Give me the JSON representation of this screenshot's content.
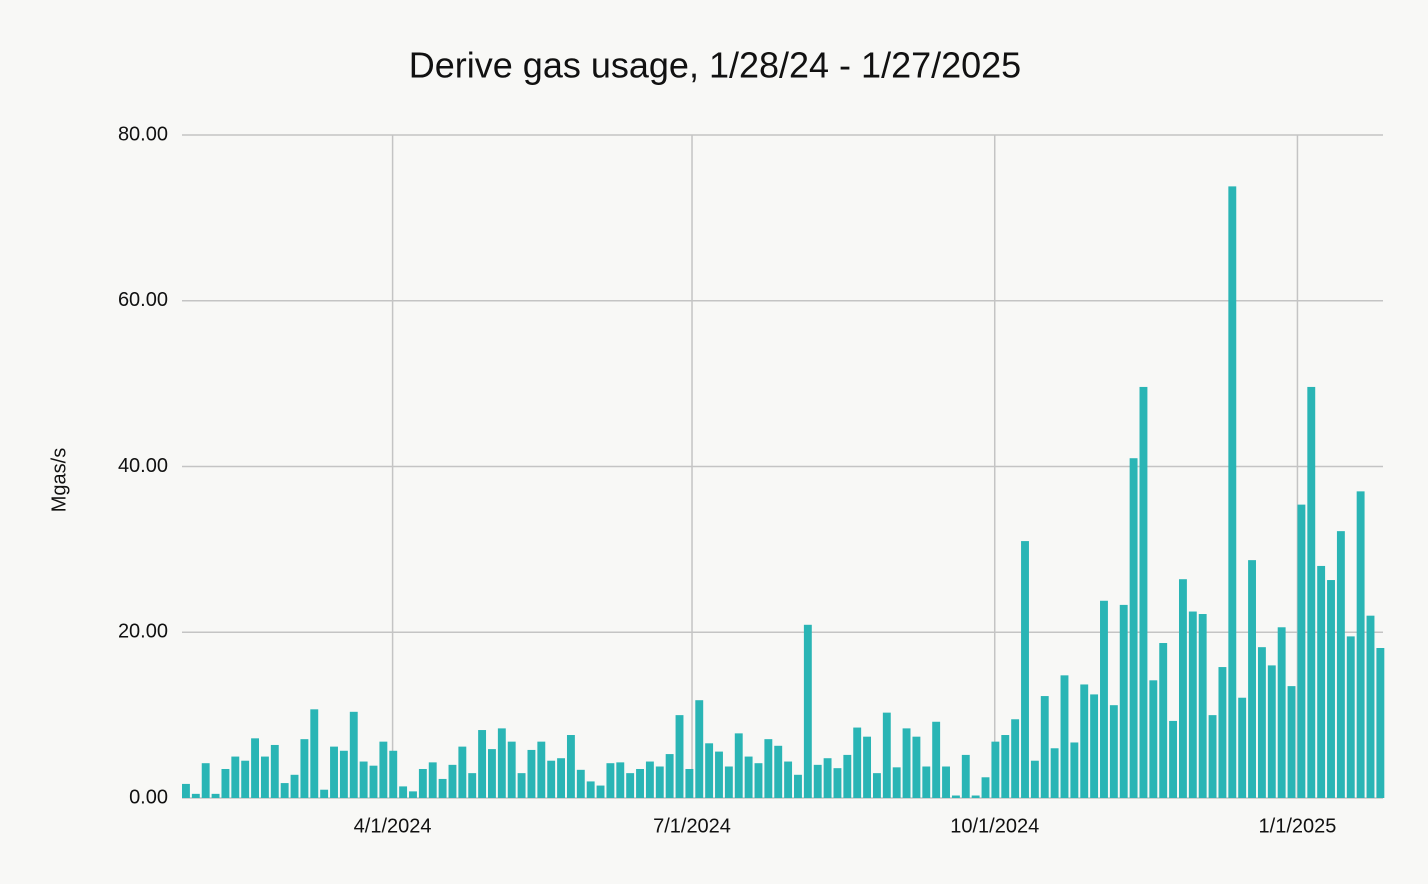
{
  "chart_data": {
    "type": "bar",
    "title": "Derive gas usage, 1/28/24 - 1/27/2025",
    "y_label": "Mgas/s",
    "color": "#2ab5b5",
    "grid": true,
    "x": [
      "2024-01-28",
      "2024-01-31",
      "2024-02-03",
      "2024-02-06",
      "2024-02-09",
      "2024-02-12",
      "2024-02-15",
      "2024-02-18",
      "2024-02-21",
      "2024-02-24",
      "2024-02-27",
      "2024-03-01",
      "2024-03-04",
      "2024-03-07",
      "2024-03-10",
      "2024-03-13",
      "2024-03-16",
      "2024-03-19",
      "2024-03-22",
      "2024-03-25",
      "2024-03-28",
      "2024-03-31",
      "2024-04-03",
      "2024-04-06",
      "2024-04-09",
      "2024-04-12",
      "2024-04-15",
      "2024-04-18",
      "2024-04-21",
      "2024-04-24",
      "2024-04-27",
      "2024-04-30",
      "2024-05-03",
      "2024-05-06",
      "2024-05-09",
      "2024-05-12",
      "2024-05-15",
      "2024-05-18",
      "2024-05-21",
      "2024-05-24",
      "2024-05-27",
      "2024-05-30",
      "2024-06-02",
      "2024-06-05",
      "2024-06-08",
      "2024-06-11",
      "2024-06-14",
      "2024-06-17",
      "2024-06-20",
      "2024-06-23",
      "2024-06-26",
      "2024-06-29",
      "2024-07-02",
      "2024-07-05",
      "2024-07-08",
      "2024-07-11",
      "2024-07-14",
      "2024-07-17",
      "2024-07-20",
      "2024-07-23",
      "2024-07-26",
      "2024-07-29",
      "2024-08-01",
      "2024-08-04",
      "2024-08-07",
      "2024-08-10",
      "2024-08-13",
      "2024-08-16",
      "2024-08-19",
      "2024-08-22",
      "2024-08-25",
      "2024-08-28",
      "2024-08-31",
      "2024-09-03",
      "2024-09-06",
      "2024-09-09",
      "2024-09-12",
      "2024-09-15",
      "2024-09-18",
      "2024-09-21",
      "2024-09-24",
      "2024-09-27",
      "2024-09-30",
      "2024-10-03",
      "2024-10-06",
      "2024-10-09",
      "2024-10-12",
      "2024-10-15",
      "2024-10-18",
      "2024-10-21",
      "2024-10-24",
      "2024-10-27",
      "2024-10-30",
      "2024-11-02",
      "2024-11-05",
      "2024-11-08",
      "2024-11-11",
      "2024-11-14",
      "2024-11-17",
      "2024-11-20",
      "2024-11-23",
      "2024-11-26",
      "2024-11-29",
      "2024-12-02",
      "2024-12-05",
      "2024-12-08",
      "2024-12-11",
      "2024-12-14",
      "2024-12-17",
      "2024-12-20",
      "2024-12-23",
      "2024-12-26",
      "2024-12-29",
      "2025-01-01",
      "2025-01-04",
      "2025-01-07",
      "2025-01-10",
      "2025-01-13",
      "2025-01-16",
      "2025-01-19",
      "2025-01-22",
      "2025-01-25"
    ],
    "values": [
      1.7,
      0.5,
      4.2,
      0.5,
      3.5,
      5.0,
      4.5,
      7.2,
      5.0,
      6.4,
      1.8,
      2.8,
      7.1,
      10.7,
      1.0,
      6.2,
      5.7,
      10.4,
      4.4,
      3.9,
      6.8,
      5.7,
      1.4,
      0.8,
      3.5,
      4.3,
      2.3,
      4.0,
      6.2,
      3.0,
      8.2,
      5.9,
      8.4,
      6.8,
      3.0,
      5.8,
      6.8,
      4.5,
      4.8,
      7.6,
      3.4,
      2.0,
      1.5,
      4.2,
      4.3,
      3.0,
      3.5,
      4.4,
      3.8,
      5.3,
      10.0,
      3.5,
      11.8,
      6.6,
      5.6,
      3.8,
      7.8,
      5.0,
      4.2,
      7.1,
      6.3,
      4.4,
      2.8,
      20.9,
      4.0,
      4.8,
      3.6,
      5.2,
      8.5,
      7.4,
      3.0,
      10.3,
      3.7,
      8.4,
      7.4,
      3.8,
      9.2,
      3.8,
      0.3,
      5.2,
      0.3,
      2.5,
      6.8,
      7.6,
      9.5,
      31.0,
      4.5,
      12.3,
      6.0,
      14.8,
      6.7,
      13.7,
      12.5,
      23.8,
      11.2,
      23.3,
      41.0,
      49.6,
      14.2,
      18.7,
      9.3,
      26.4,
      22.5,
      22.2,
      10.0,
      15.8,
      73.8,
      12.1,
      28.7,
      18.2,
      16.0,
      20.6,
      13.5,
      35.4,
      49.6,
      28.0,
      26.3,
      32.2,
      19.5,
      37.0,
      22.0,
      18.1
    ],
    "xlim": [
      "2024-01-28",
      "2025-01-27"
    ],
    "xticks": [
      {
        "value": "2024-04-01",
        "label": "4/1/2024"
      },
      {
        "value": "2024-07-01",
        "label": "7/1/2024"
      },
      {
        "value": "2024-10-01",
        "label": "10/1/2024"
      },
      {
        "value": "2025-01-01",
        "label": "1/1/2025"
      }
    ],
    "ylim": [
      0,
      80
    ],
    "yticks": [
      {
        "value": 0,
        "label": "0.00"
      },
      {
        "value": 20,
        "label": "20.00"
      },
      {
        "value": 40,
        "label": "40.00"
      },
      {
        "value": 60,
        "label": "60.00"
      },
      {
        "value": 80,
        "label": "80.00"
      }
    ]
  }
}
